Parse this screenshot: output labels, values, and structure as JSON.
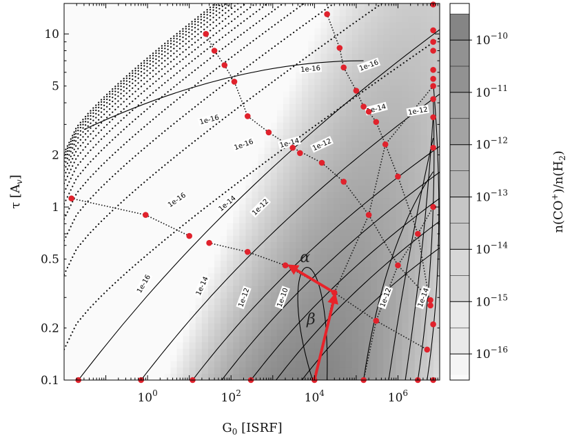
{
  "chart_data": {
    "type": "heatmap",
    "xlabel_main": "G",
    "xlabel_sub": "0",
    "xlabel_rest": " [ISRF]",
    "ylabel_main": "τ [A",
    "ylabel_sub": "v",
    "ylabel_rest": "]",
    "x_scale": "log",
    "y_scale": "log",
    "xlim": [
      0.01,
      10000000
    ],
    "ylim": [
      0.1,
      15
    ],
    "x_ticks": [
      {
        "value": 1,
        "base": "10",
        "exp": "0"
      },
      {
        "value": 100,
        "base": "10",
        "exp": "2"
      },
      {
        "value": 10000,
        "base": "10",
        "exp": "4"
      },
      {
        "value": 1000000,
        "base": "10",
        "exp": "6"
      }
    ],
    "y_ticks": [
      {
        "value": 0.1,
        "label": "0.1"
      },
      {
        "value": 0.2,
        "label": "0.2"
      },
      {
        "value": 0.5,
        "label": "0.5"
      },
      {
        "value": 1,
        "label": "1"
      },
      {
        "value": 2,
        "label": "2"
      },
      {
        "value": 5,
        "label": "5"
      },
      {
        "value": 10,
        "label": "10"
      }
    ],
    "colorbar": {
      "label_main": "n(CO",
      "label_sup": "+",
      "label_rest": ")/n(H",
      "label_sub": "2",
      "label_end": ")",
      "range_log10": [
        -16.5,
        -9.3
      ],
      "levels": [
        -16.4,
        -16,
        -15,
        -14,
        -13,
        -12,
        -11,
        -10,
        -9.5
      ],
      "ticks": [
        {
          "value": -10,
          "base": "10",
          "exp": "−10"
        },
        {
          "value": -11,
          "base": "10",
          "exp": "−11"
        },
        {
          "value": -12,
          "base": "10",
          "exp": "−12"
        },
        {
          "value": -13,
          "base": "10",
          "exp": "−13"
        },
        {
          "value": -14,
          "base": "10",
          "exp": "−14"
        },
        {
          "value": -15,
          "base": "10",
          "exp": "−15"
        },
        {
          "value": -16,
          "base": "10",
          "exp": "−16"
        }
      ]
    },
    "contour_labels": [
      {
        "text": "1e-16",
        "x": 30,
        "y": 3.2,
        "angle": -15
      },
      {
        "text": "1e-16",
        "x": 8000,
        "y": 6.3,
        "angle": -5
      },
      {
        "text": "1e-16",
        "x": 200000,
        "y": 6.6,
        "angle": -20
      },
      {
        "text": "1e-16",
        "x": 200,
        "y": 2.3,
        "angle": -20
      },
      {
        "text": "1e-16",
        "x": 5,
        "y": 1.1,
        "angle": -35
      },
      {
        "text": "1e-16",
        "x": 0.8,
        "y": 0.36,
        "angle": -60
      },
      {
        "text": "1e-14",
        "x": 20,
        "y": 0.35,
        "angle": -65
      },
      {
        "text": "1e-14",
        "x": 80,
        "y": 1.05,
        "angle": -40
      },
      {
        "text": "1e-14",
        "x": 2500,
        "y": 2.35,
        "angle": -15
      },
      {
        "text": "1e-14",
        "x": 300000,
        "y": 3.7,
        "angle": -15
      },
      {
        "text": "1e-14",
        "x": 4000000,
        "y": 0.3,
        "angle": -70
      },
      {
        "text": "1e-12",
        "x": 200,
        "y": 0.3,
        "angle": -70
      },
      {
        "text": "1e-12",
        "x": 500,
        "y": 1.0,
        "angle": -45
      },
      {
        "text": "1e-12",
        "x": 15000,
        "y": 2.3,
        "angle": -25
      },
      {
        "text": "1e-12",
        "x": 3000000,
        "y": 3.6,
        "angle": -10
      },
      {
        "text": "1e-12",
        "x": 500000,
        "y": 0.3,
        "angle": -70
      },
      {
        "text": "1e-10",
        "x": 1700,
        "y": 0.3,
        "angle": -70
      }
    ],
    "grid_points_solid_family": [
      {
        "x": 0.022,
        "y": 0.1
      },
      {
        "x": 0.7,
        "y": 0.1
      },
      {
        "x": 12,
        "y": 0.1
      },
      {
        "x": 300,
        "y": 0.1
      },
      {
        "x": 10000,
        "y": 0.1
      },
      {
        "x": 150000,
        "y": 0.1
      },
      {
        "x": 3000000,
        "y": 0.1
      },
      {
        "x": 25,
        "y": 10
      },
      {
        "x": 40,
        "y": 8
      },
      {
        "x": 70,
        "y": 6.6
      },
      {
        "x": 120,
        "y": 5.3
      },
      {
        "x": 250,
        "y": 3.35
      },
      {
        "x": 800,
        "y": 2.7
      },
      {
        "x": 3000,
        "y": 2.2
      },
      {
        "x": 4500,
        "y": 2.05
      },
      {
        "x": 15000,
        "y": 1.8
      },
      {
        "x": 50000,
        "y": 1.4
      },
      {
        "x": 200000,
        "y": 0.9
      },
      {
        "x": 1000000,
        "y": 0.46
      },
      {
        "x": 6000000,
        "y": 0.29
      },
      {
        "x": 0.015,
        "y": 1.12
      },
      {
        "x": 0.9,
        "y": 0.9
      },
      {
        "x": 10,
        "y": 0.68
      },
      {
        "x": 30,
        "y": 0.62
      },
      {
        "x": 250,
        "y": 0.55
      },
      {
        "x": 2000,
        "y": 0.46
      },
      {
        "x": 30000,
        "y": 0.32
      },
      {
        "x": 300000,
        "y": 0.22
      },
      {
        "x": 5000000,
        "y": 0.15
      },
      {
        "x": 20000,
        "y": 13
      },
      {
        "x": 40000,
        "y": 8.3
      },
      {
        "x": 50000,
        "y": 6.4
      },
      {
        "x": 100000,
        "y": 4.7
      },
      {
        "x": 150000,
        "y": 3.8
      },
      {
        "x": 200000,
        "y": 3.55
      },
      {
        "x": 300000,
        "y": 3.1
      },
      {
        "x": 500000,
        "y": 2.3
      },
      {
        "x": 1000000,
        "y": 1.5
      },
      {
        "x": 3000000,
        "y": 0.7
      },
      {
        "x": 6000000,
        "y": 0.27
      },
      {
        "x": 7000000,
        "y": 14.8
      },
      {
        "x": 7000000,
        "y": 10.5
      },
      {
        "x": 7000000,
        "y": 9
      },
      {
        "x": 7000000,
        "y": 8
      },
      {
        "x": 7000000,
        "y": 6.2
      },
      {
        "x": 7000000,
        "y": 5.5
      },
      {
        "x": 7000000,
        "y": 5.0
      },
      {
        "x": 7000000,
        "y": 4.2
      },
      {
        "x": 7000000,
        "y": 3.3
      },
      {
        "x": 7000000,
        "y": 2.2
      },
      {
        "x": 7000000,
        "y": 1.0
      },
      {
        "x": 7000000,
        "y": 0.21
      },
      {
        "x": 7000000,
        "y": 0.1
      }
    ],
    "arrows": [
      {
        "name": "alpha",
        "label": "α",
        "from": {
          "x": 30000,
          "y": 0.32
        },
        "to": {
          "x": 2800,
          "y": 0.45
        }
      },
      {
        "name": "beta",
        "label": "β",
        "from": {
          "x": 10000,
          "y": 0.1
        },
        "to": {
          "x": 30000,
          "y": 0.3
        }
      }
    ],
    "arrow_color": "#e8232a",
    "point_color": "#e0222c"
  }
}
